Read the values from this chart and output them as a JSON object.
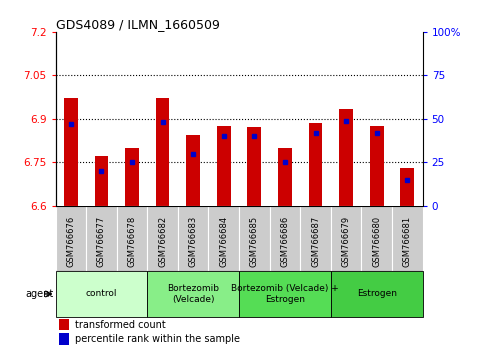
{
  "title": "GDS4089 / ILMN_1660509",
  "samples": [
    "GSM766676",
    "GSM766677",
    "GSM766678",
    "GSM766682",
    "GSM766683",
    "GSM766684",
    "GSM766685",
    "GSM766686",
    "GSM766687",
    "GSM766679",
    "GSM766680",
    "GSM766681"
  ],
  "transformed_count": [
    6.97,
    6.77,
    6.8,
    6.97,
    6.845,
    6.875,
    6.87,
    6.8,
    6.885,
    6.935,
    6.875,
    6.73
  ],
  "percentile_rank": [
    47,
    20,
    25,
    48,
    30,
    40,
    40,
    25,
    42,
    49,
    42,
    15
  ],
  "ymin": 6.6,
  "ymax": 7.2,
  "yticks": [
    6.6,
    6.75,
    6.9,
    7.05,
    7.2
  ],
  "ytick_labels": [
    "6.6",
    "6.75",
    "6.9",
    "7.05",
    "7.2"
  ],
  "right_yticks": [
    0,
    25,
    50,
    75,
    100
  ],
  "right_ytick_labels": [
    "0",
    "25",
    "50",
    "75",
    "100%"
  ],
  "bar_color": "#cc0000",
  "dot_color": "#0000cc",
  "groups": [
    {
      "label": "control",
      "start": 0,
      "end": 3,
      "color": "#ccffcc"
    },
    {
      "label": "Bortezomib\n(Velcade)",
      "start": 3,
      "end": 6,
      "color": "#88ee88"
    },
    {
      "label": "Bortezomib (Velcade) +\nEstrogen",
      "start": 6,
      "end": 9,
      "color": "#55dd55"
    },
    {
      "label": "Estrogen",
      "start": 9,
      "end": 12,
      "color": "#44cc44"
    }
  ],
  "agent_label": "agent",
  "legend_red": "transformed count",
  "legend_blue": "percentile rank within the sample",
  "bar_width": 0.45,
  "sample_bg": "#cccccc",
  "fig_bg": "#ffffff"
}
